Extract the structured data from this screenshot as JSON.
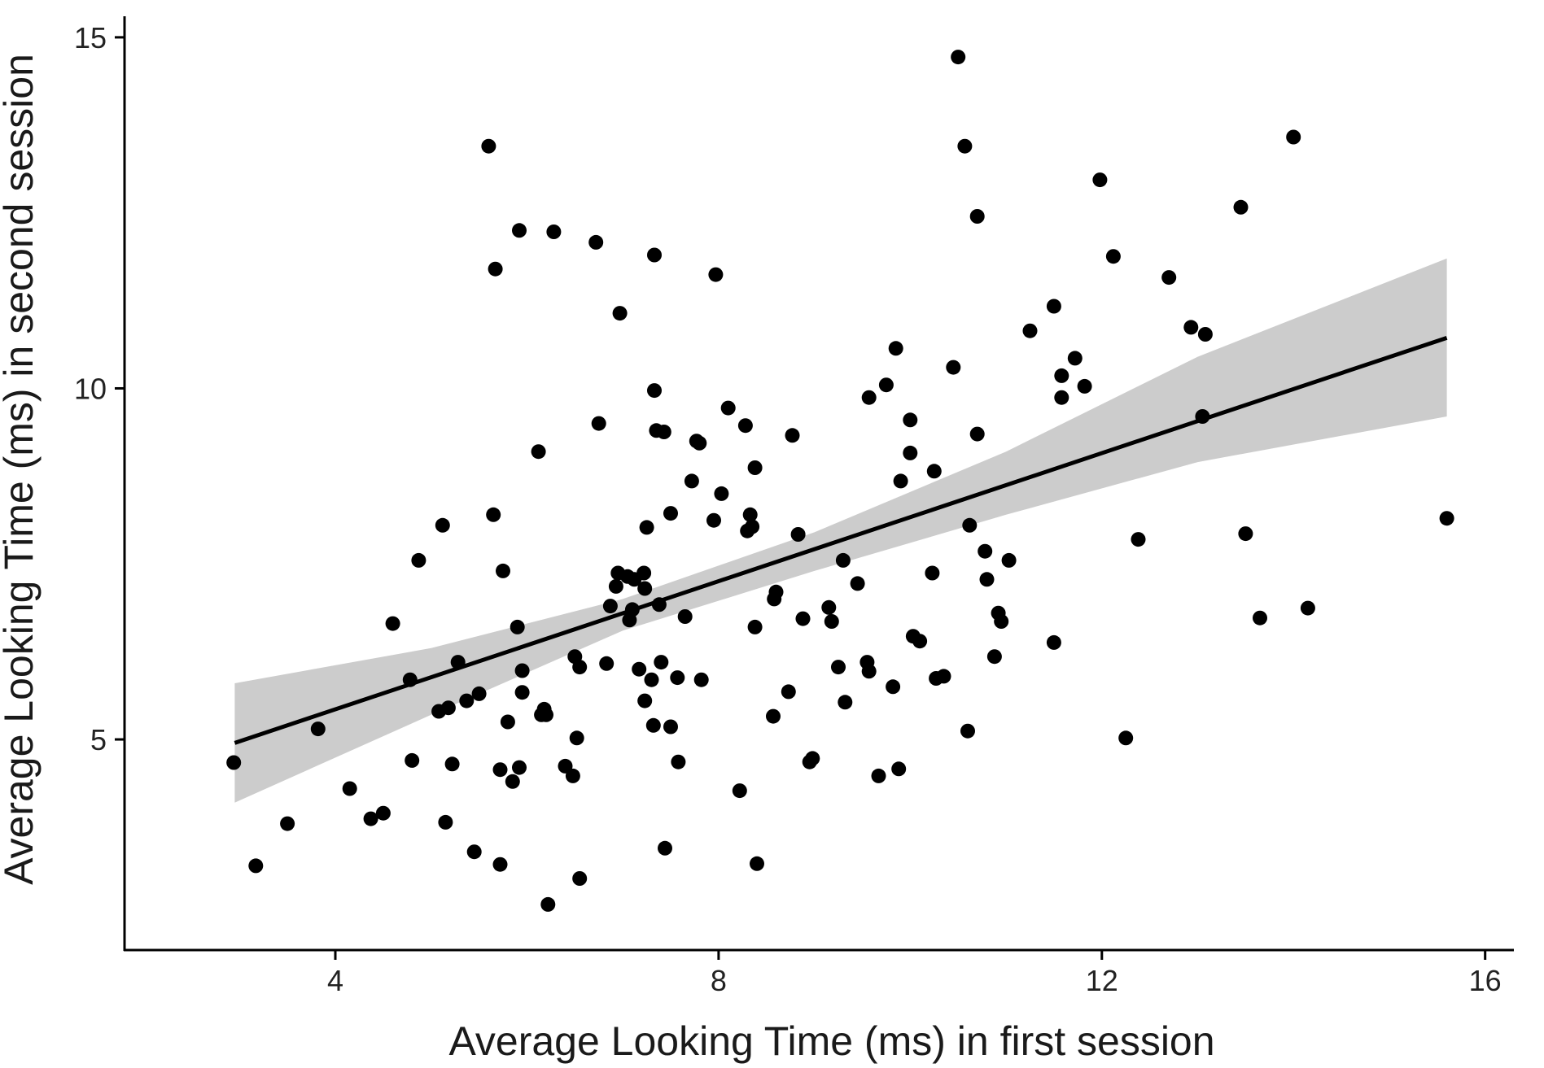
{
  "chart_data": {
    "type": "scatter",
    "xlabel": "Average Looking Time (ms) in first session",
    "ylabel": "Average Looking Time (ms) in second session",
    "xlim": [
      1.8,
      16.3
    ],
    "ylim": [
      2.0,
      15.3
    ],
    "x_ticks": [
      4,
      8,
      12,
      16
    ],
    "y_ticks": [
      5,
      10,
      15
    ],
    "grid": false,
    "legend": "none",
    "colors": {
      "points": "#000000",
      "fit_line": "#000000",
      "confidence_band": "#cccccc",
      "axis": "#000000"
    },
    "regression": {
      "line": {
        "x": [
          2.95,
          15.6
        ],
        "y": [
          4.95,
          10.72
        ]
      },
      "band_upper": [
        [
          2.95,
          5.8
        ],
        [
          5.0,
          6.3
        ],
        [
          7.0,
          7.0
        ],
        [
          9.0,
          7.95
        ],
        [
          11.0,
          9.1
        ],
        [
          13.0,
          10.45
        ],
        [
          15.6,
          11.85
        ]
      ],
      "band_lower": [
        [
          2.95,
          4.1
        ],
        [
          5.0,
          5.35
        ],
        [
          7.0,
          6.55
        ],
        [
          9.0,
          7.4
        ],
        [
          11.0,
          8.2
        ],
        [
          13.0,
          8.95
        ],
        [
          15.6,
          9.6
        ]
      ]
    },
    "points": [
      [
        2.94,
        4.67
      ],
      [
        3.17,
        3.2
      ],
      [
        3.5,
        3.8
      ],
      [
        3.82,
        5.15
      ],
      [
        4.15,
        4.3
      ],
      [
        4.37,
        3.87
      ],
      [
        4.5,
        3.95
      ],
      [
        4.6,
        6.65
      ],
      [
        4.78,
        5.85
      ],
      [
        4.8,
        4.7
      ],
      [
        4.87,
        7.55
      ],
      [
        5.08,
        5.4
      ],
      [
        5.12,
        8.05
      ],
      [
        5.15,
        3.82
      ],
      [
        5.18,
        5.45
      ],
      [
        5.22,
        4.65
      ],
      [
        5.28,
        6.1
      ],
      [
        5.37,
        5.55
      ],
      [
        5.45,
        3.4
      ],
      [
        5.5,
        5.65
      ],
      [
        5.6,
        13.45
      ],
      [
        5.65,
        8.2
      ],
      [
        5.67,
        11.7
      ],
      [
        5.72,
        4.57
      ],
      [
        5.72,
        3.22
      ],
      [
        5.75,
        7.4
      ],
      [
        5.8,
        5.25
      ],
      [
        5.85,
        4.4
      ],
      [
        5.9,
        6.6
      ],
      [
        5.92,
        12.25
      ],
      [
        5.92,
        4.6
      ],
      [
        5.95,
        5.98
      ],
      [
        5.95,
        5.67
      ],
      [
        6.12,
        9.1
      ],
      [
        6.15,
        5.35
      ],
      [
        6.18,
        5.43
      ],
      [
        6.2,
        5.35
      ],
      [
        6.22,
        2.65
      ],
      [
        6.28,
        12.23
      ],
      [
        6.4,
        4.62
      ],
      [
        6.48,
        4.48
      ],
      [
        6.5,
        6.18
      ],
      [
        6.52,
        5.02
      ],
      [
        6.55,
        6.03
      ],
      [
        6.55,
        3.02
      ],
      [
        6.72,
        12.08
      ],
      [
        6.75,
        9.5
      ],
      [
        6.83,
        6.08
      ],
      [
        6.87,
        6.9
      ],
      [
        6.93,
        7.18
      ],
      [
        6.95,
        7.37
      ],
      [
        6.97,
        11.07
      ],
      [
        7.05,
        7.32
      ],
      [
        7.07,
        6.7
      ],
      [
        7.1,
        6.85
      ],
      [
        7.12,
        7.28
      ],
      [
        7.17,
        6.0
      ],
      [
        7.22,
        7.37
      ],
      [
        7.23,
        7.15
      ],
      [
        7.23,
        5.55
      ],
      [
        7.25,
        8.02
      ],
      [
        7.3,
        5.85
      ],
      [
        7.32,
        5.2
      ],
      [
        7.33,
        11.9
      ],
      [
        7.33,
        9.97
      ],
      [
        7.35,
        9.4
      ],
      [
        7.38,
        6.92
      ],
      [
        7.4,
        6.1
      ],
      [
        7.43,
        9.38
      ],
      [
        7.44,
        3.45
      ],
      [
        7.5,
        5.18
      ],
      [
        7.5,
        8.22
      ],
      [
        7.57,
        5.88
      ],
      [
        7.58,
        4.68
      ],
      [
        7.65,
        6.75
      ],
      [
        7.72,
        8.68
      ],
      [
        7.77,
        9.25
      ],
      [
        7.8,
        9.22
      ],
      [
        7.82,
        5.85
      ],
      [
        7.95,
        8.12
      ],
      [
        7.97,
        11.62
      ],
      [
        8.03,
        8.5
      ],
      [
        8.1,
        9.72
      ],
      [
        8.22,
        4.27
      ],
      [
        8.28,
        9.47
      ],
      [
        8.3,
        7.97
      ],
      [
        8.33,
        8.2
      ],
      [
        8.35,
        8.03
      ],
      [
        8.38,
        8.87
      ],
      [
        8.38,
        6.6
      ],
      [
        8.4,
        3.23
      ],
      [
        8.57,
        5.33
      ],
      [
        8.58,
        7.0
      ],
      [
        8.6,
        7.1
      ],
      [
        8.73,
        5.68
      ],
      [
        8.77,
        9.33
      ],
      [
        8.83,
        7.92
      ],
      [
        8.88,
        6.72
      ],
      [
        8.95,
        4.68
      ],
      [
        8.98,
        4.73
      ],
      [
        9.15,
        6.88
      ],
      [
        9.18,
        6.68
      ],
      [
        9.25,
        6.03
      ],
      [
        9.3,
        7.55
      ],
      [
        9.32,
        5.53
      ],
      [
        9.45,
        7.22
      ],
      [
        9.55,
        6.1
      ],
      [
        9.57,
        5.97
      ],
      [
        9.57,
        9.87
      ],
      [
        9.67,
        4.48
      ],
      [
        9.75,
        10.05
      ],
      [
        9.82,
        5.75
      ],
      [
        9.85,
        10.57
      ],
      [
        9.88,
        4.58
      ],
      [
        9.9,
        8.68
      ],
      [
        10.0,
        9.55
      ],
      [
        10.0,
        9.08
      ],
      [
        10.03,
        6.47
      ],
      [
        10.1,
        6.4
      ],
      [
        10.23,
        7.37
      ],
      [
        10.25,
        8.82
      ],
      [
        10.27,
        5.87
      ],
      [
        10.35,
        5.9
      ],
      [
        10.45,
        10.3
      ],
      [
        10.5,
        14.72
      ],
      [
        10.57,
        13.45
      ],
      [
        10.6,
        5.12
      ],
      [
        10.62,
        8.05
      ],
      [
        10.7,
        12.45
      ],
      [
        10.7,
        9.35
      ],
      [
        10.78,
        7.68
      ],
      [
        10.8,
        7.28
      ],
      [
        10.88,
        6.18
      ],
      [
        10.92,
        6.8
      ],
      [
        10.95,
        6.68
      ],
      [
        11.03,
        7.55
      ],
      [
        11.25,
        10.82
      ],
      [
        11.5,
        11.17
      ],
      [
        11.5,
        6.38
      ],
      [
        11.58,
        10.18
      ],
      [
        11.58,
        9.87
      ],
      [
        11.72,
        10.43
      ],
      [
        11.82,
        10.03
      ],
      [
        11.98,
        12.97
      ],
      [
        12.12,
        11.88
      ],
      [
        12.25,
        5.02
      ],
      [
        12.38,
        7.85
      ],
      [
        12.7,
        11.58
      ],
      [
        12.93,
        10.87
      ],
      [
        13.05,
        9.6
      ],
      [
        13.08,
        10.77
      ],
      [
        13.45,
        12.58
      ],
      [
        13.5,
        7.93
      ],
      [
        13.65,
        6.73
      ],
      [
        14.0,
        13.58
      ],
      [
        14.15,
        6.87
      ],
      [
        15.6,
        8.15
      ]
    ]
  }
}
